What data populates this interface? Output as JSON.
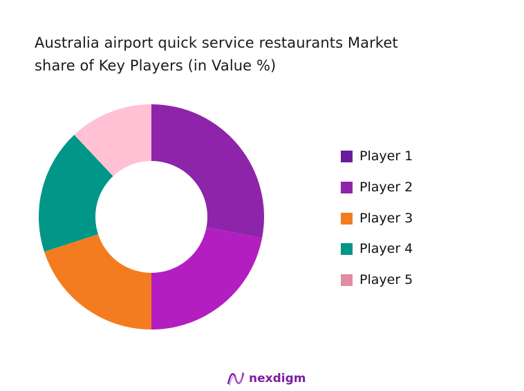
{
  "chart_data": {
    "type": "pie",
    "donut": true,
    "title": "Australia airport quick service restaurants Market share of Key Players (in Value %)",
    "title_lines": [
      "Australia airport quick service restaurants Market",
      "share of Key Players (in Value %)"
    ],
    "categories": [
      "Player 1",
      "Player 2",
      "Player 3",
      "Player 4",
      "Player 5"
    ],
    "values": [
      28,
      22,
      20,
      18,
      12
    ],
    "slice_colors": [
      "#8E24AA",
      "#B31EC0",
      "#F47C20",
      "#009688",
      "#FFC1D3"
    ],
    "legend_colors": [
      "#6A1B9A",
      "#8E24AA",
      "#F47C20",
      "#009688",
      "#E08CA3"
    ],
    "legend_placement": "right"
  },
  "brand": {
    "name": "nexdigm",
    "color": "#7B1FA2"
  }
}
